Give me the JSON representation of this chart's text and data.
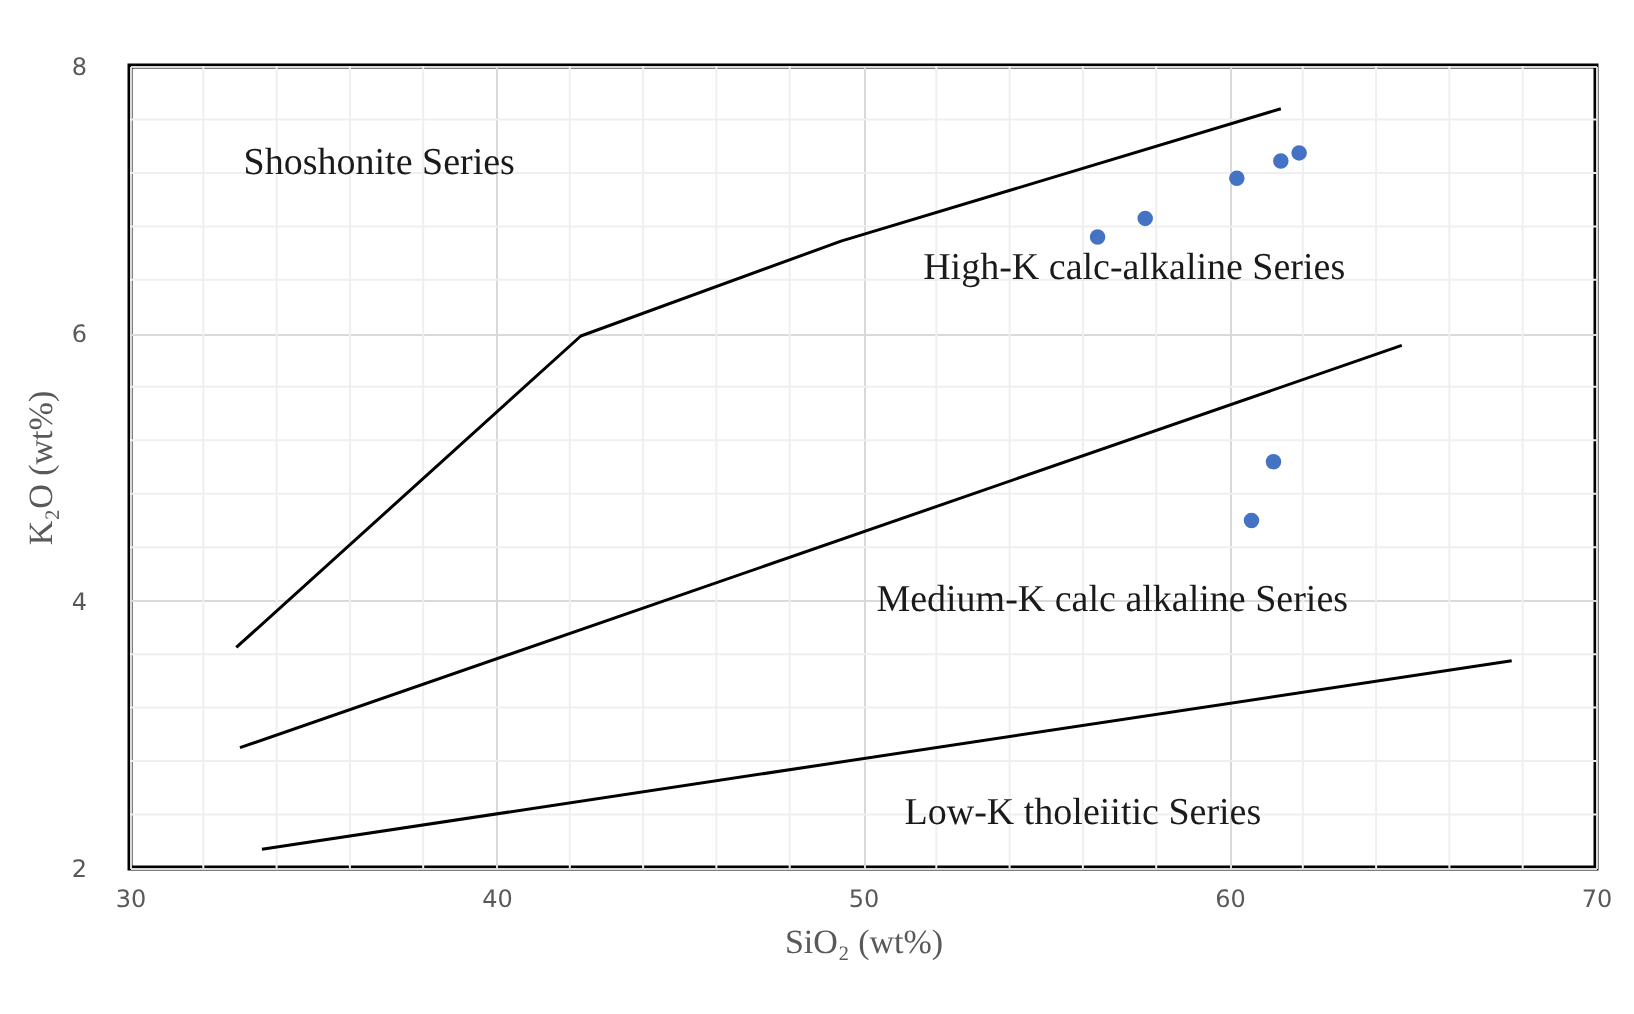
{
  "chart_data": {
    "type": "scatter",
    "xlabel": "SiO₂ (wt%)",
    "ylabel": "K₂O (wt%)",
    "xlim": [
      30,
      70
    ],
    "ylim": [
      2,
      8
    ],
    "xticks": [
      30,
      40,
      50,
      60,
      70
    ],
    "yticks": [
      2,
      4,
      6,
      8
    ],
    "grid": true,
    "marker": "circle",
    "series": [
      {
        "type": "line",
        "color": "#000000",
        "line_style": "solid",
        "marker": "none",
        "x": [
          32.9,
          42.3,
          49.4,
          61.4
        ],
        "values": [
          3.65,
          5.98,
          6.69,
          7.68
        ]
      },
      {
        "type": "line",
        "color": "#000000",
        "line_style": "solid",
        "marker": "none",
        "x": [
          33.0,
          64.7
        ],
        "values": [
          2.9,
          5.91
        ]
      },
      {
        "type": "line",
        "color": "#000000",
        "line_style": "solid",
        "marker": "none",
        "x": [
          33.6,
          67.7
        ],
        "values": [
          2.14,
          3.55
        ]
      },
      {
        "color": "#4472c4",
        "x": [
          56.4,
          57.7,
          60.2,
          61.4,
          61.9,
          61.2,
          60.6
        ],
        "values": [
          6.72,
          6.86,
          7.16,
          7.29,
          7.35,
          5.04,
          4.6
        ]
      }
    ],
    "annotations": [
      "Shoshonite Series",
      "High-K calc-alkaline Series",
      "Medium-K calc alkaline Series",
      "Low-K tholeiitic Series"
    ]
  }
}
